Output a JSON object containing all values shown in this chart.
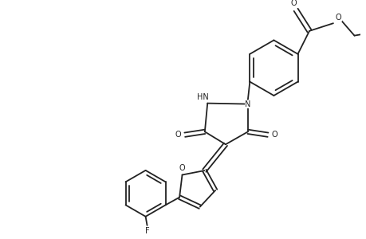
{
  "bg_color": "#ffffff",
  "line_color": "#222222",
  "lw": 1.3,
  "figsize": [
    4.6,
    3.0
  ],
  "dpi": 100,
  "xlim": [
    0,
    9.2
  ],
  "ylim": [
    0,
    6.0
  ],
  "fs": 7.0
}
